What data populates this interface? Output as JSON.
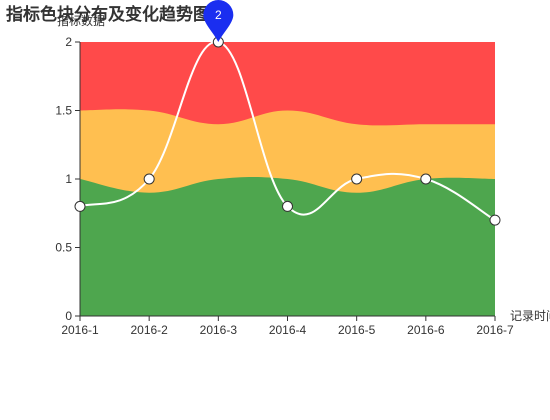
{
  "chart_data": {
    "type": "line",
    "title": "指标色块分布及变化趋势图",
    "xlabel": "记录时间",
    "ylabel": "指标数据",
    "categories": [
      "2016-1",
      "2016-2",
      "2016-3",
      "2016-4",
      "2016-5",
      "2016-6",
      "2016-7"
    ],
    "ylim": [
      0,
      2
    ],
    "yticks": [
      "0",
      "0.5",
      "1",
      "1.5",
      "2"
    ],
    "grid": false,
    "series": [
      {
        "type": "line",
        "smooth": true,
        "color": "#ffffff",
        "values": [
          0.8,
          1,
          2,
          0.8,
          1,
          1,
          0.7
        ]
      }
    ],
    "bands": [
      {
        "color": "#4ea64e",
        "upper": [
          1,
          0.9,
          1,
          1,
          0.9,
          1,
          1
        ]
      },
      {
        "color": "#ffbf50",
        "upper": [
          1.5,
          1.5,
          1.4,
          1.5,
          1.4,
          1.4,
          1.4
        ]
      },
      {
        "color": "#ff4a4a",
        "upper": [
          2,
          2,
          2,
          2,
          2,
          2,
          2
        ]
      }
    ],
    "mark_point": {
      "type": "max",
      "category": "2016-3",
      "value": 2,
      "label": "2",
      "color": "#1a2ef0"
    }
  }
}
